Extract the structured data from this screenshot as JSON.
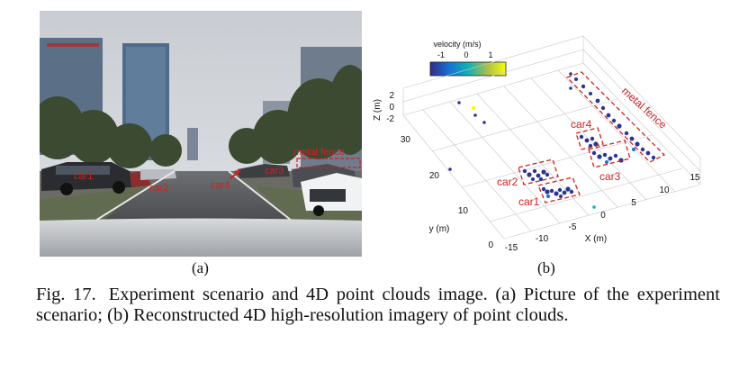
{
  "panel_a": {
    "label": "(a)",
    "annotations": {
      "car1": "car1",
      "car2": "car2",
      "car3": "car3",
      "car4": "car4",
      "metal_fence": "metal fence"
    }
  },
  "panel_b": {
    "label": "(b)",
    "colorbar": {
      "title": "velocity (m/s)",
      "ticks": [
        "-1",
        "0",
        "1"
      ]
    },
    "axes": {
      "z_label": "Z (m)",
      "y_label": "y (m)",
      "x_label": "X (m)",
      "z_ticks": [
        "2",
        "0",
        "-2"
      ],
      "y_ticks": [
        "30",
        "20",
        "10",
        "0"
      ],
      "x_ticks": [
        "-15",
        "-10",
        "-5",
        "0",
        "5",
        "10",
        "15"
      ]
    },
    "annotations": {
      "car1": "car1",
      "car2": "car2",
      "car3": "car3",
      "car4": "car4",
      "metal_fence": "metal fence"
    }
  },
  "caption": {
    "lead": "Fig. 17.",
    "text": "Experiment scenario and 4D point clouds image. (a) Picture of the experiment scenario; (b) Reconstructed 4D high-resolution imagery of point clouds."
  }
}
